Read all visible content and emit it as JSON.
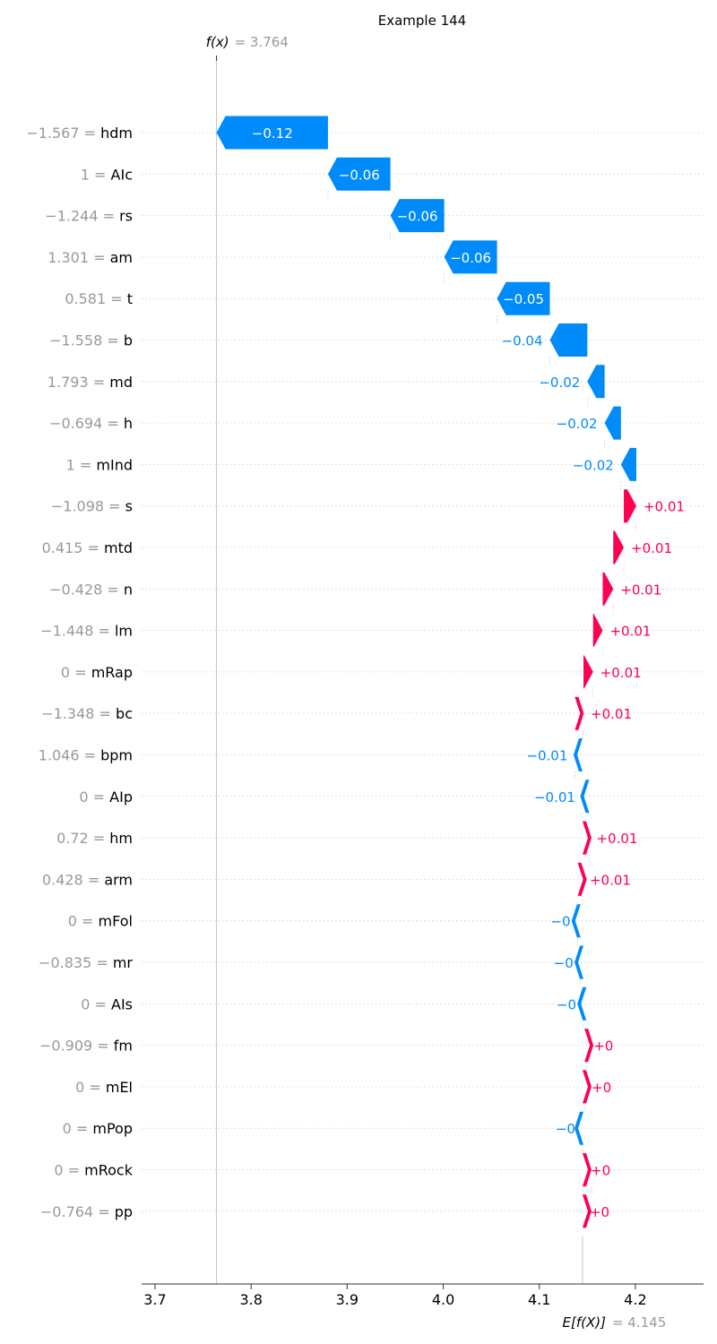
{
  "chart_data": {
    "type": "waterfall",
    "title": "Example 144",
    "fx_label": "f(x)",
    "fx_eq": "= 3.764",
    "fx_value": 3.764,
    "ex_label": "E[f(X)]",
    "ex_eq": "= 4.145",
    "ex_value": 4.145,
    "xlim": [
      3.686,
      4.271
    ],
    "x_ticks": [
      3.7,
      3.8,
      3.9,
      4.0,
      4.1,
      4.2
    ],
    "x_tick_labels": [
      "3.7",
      "3.8",
      "3.9",
      "4.0",
      "4.1",
      "4.2"
    ],
    "colors": {
      "positive": "#ff0051",
      "negative": "#008bfb",
      "muted_text": "#999999",
      "text": "#000000",
      "grid": "#cccccc"
    },
    "features": [
      {
        "value_text": "−1.567",
        "name": "hdm",
        "start": 3.88,
        "end": 3.764,
        "label": "−0.12"
      },
      {
        "value_text": "1",
        "name": "AIc",
        "start": 3.945,
        "end": 3.88,
        "label": "−0.06"
      },
      {
        "value_text": "−1.244",
        "name": "rs",
        "start": 4.001,
        "end": 3.945,
        "label": "−0.06"
      },
      {
        "value_text": "1.301",
        "name": "am",
        "start": 4.056,
        "end": 4.001,
        "label": "−0.06"
      },
      {
        "value_text": "0.581",
        "name": "t",
        "start": 4.111,
        "end": 4.056,
        "label": "−0.05"
      },
      {
        "value_text": "−1.558",
        "name": "b",
        "start": 4.15,
        "end": 4.111,
        "label": "−0.04"
      },
      {
        "value_text": "1.793",
        "name": "md",
        "start": 4.168,
        "end": 4.15,
        "label": "−0.02"
      },
      {
        "value_text": "−0.694",
        "name": "h",
        "start": 4.185,
        "end": 4.168,
        "label": "−0.02"
      },
      {
        "value_text": "1",
        "name": "mInd",
        "start": 4.201,
        "end": 4.185,
        "label": "−0.02"
      },
      {
        "value_text": "−1.098",
        "name": "s",
        "start": 4.188,
        "end": 4.201,
        "label": "+0.01"
      },
      {
        "value_text": "0.415",
        "name": "mtd",
        "start": 4.177,
        "end": 4.188,
        "label": "+0.01"
      },
      {
        "value_text": "−0.428",
        "name": "n",
        "start": 4.166,
        "end": 4.177,
        "label": "+0.01"
      },
      {
        "value_text": "−1.448",
        "name": "lm",
        "start": 4.156,
        "end": 4.166,
        "label": "+0.01"
      },
      {
        "value_text": "0",
        "name": "mRap",
        "start": 4.146,
        "end": 4.156,
        "label": "+0.01"
      },
      {
        "value_text": "−1.348",
        "name": "bc",
        "start": 4.137,
        "end": 4.146,
        "label": "+0.01"
      },
      {
        "value_text": "1.046",
        "name": "bpm",
        "start": 4.145,
        "end": 4.137,
        "label": "−0.01"
      },
      {
        "value_text": "0",
        "name": "AIp",
        "start": 4.152,
        "end": 4.145,
        "label": "−0.01"
      },
      {
        "value_text": "0.72",
        "name": "hm",
        "start": 4.145,
        "end": 4.152,
        "label": "+0.01"
      },
      {
        "value_text": "0.428",
        "name": "arm",
        "start": 4.14,
        "end": 4.145,
        "label": "+0.01"
      },
      {
        "value_text": "0",
        "name": "mFol",
        "start": 4.143,
        "end": 4.14,
        "label": "−0"
      },
      {
        "value_text": "−0.835",
        "name": "mr",
        "start": 4.146,
        "end": 4.143,
        "label": "−0"
      },
      {
        "value_text": "0",
        "name": "AIs",
        "start": 4.149,
        "end": 4.146,
        "label": "−0"
      },
      {
        "value_text": "−0.909",
        "name": "fm",
        "start": 4.147,
        "end": 4.149,
        "label": "+0"
      },
      {
        "value_text": "0",
        "name": "mEl",
        "start": 4.145,
        "end": 4.147,
        "label": "+0"
      },
      {
        "value_text": "0",
        "name": "mPop",
        "start": 4.146,
        "end": 4.145,
        "label": "−0"
      },
      {
        "value_text": "0",
        "name": "mRock",
        "start": 4.145,
        "end": 4.146,
        "label": "+0"
      },
      {
        "value_text": "−0.764",
        "name": "pp",
        "start": 4.145,
        "end": 4.145,
        "label": "+0"
      }
    ]
  }
}
